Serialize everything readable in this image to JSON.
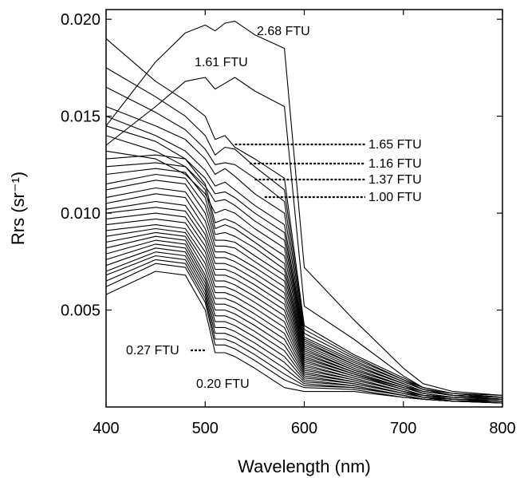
{
  "chart_data": {
    "type": "line",
    "title": "",
    "xlabel": "Wavelength (nm)",
    "ylabel": "Rrs (sr⁻¹)",
    "xlim": [
      400,
      800
    ],
    "ylim": [
      0.0,
      0.0205
    ],
    "x_ticks": [
      {
        "value": 400,
        "label": "400"
      },
      {
        "value": 500,
        "label": "500"
      },
      {
        "value": 600,
        "label": "600"
      },
      {
        "value": 700,
        "label": "700"
      },
      {
        "value": 800,
        "label": "800"
      }
    ],
    "y_ticks": [
      {
        "value": 0.005,
        "label": "0.005"
      },
      {
        "value": 0.01,
        "label": "0.010"
      },
      {
        "value": 0.015,
        "label": "0.015"
      },
      {
        "value": 0.02,
        "label": "0.020"
      }
    ],
    "grid": false,
    "line_color": "#000000",
    "x": [
      400,
      450,
      480,
      500,
      510,
      520,
      530,
      550,
      580,
      600,
      650,
      700,
      720,
      750,
      800
    ],
    "series": [
      {
        "values": [
          0.0145,
          0.0178,
          0.0193,
          0.0197,
          0.0194,
          0.0198,
          0.0199,
          0.0192,
          0.0185,
          0.0072,
          0.0045,
          0.002,
          0.0012,
          0.0008,
          0.0006
        ]
      },
      {
        "values": [
          0.0135,
          0.0155,
          0.0168,
          0.017,
          0.0164,
          0.0167,
          0.017,
          0.0163,
          0.0155,
          0.0052,
          0.0035,
          0.0016,
          0.001,
          0.0007,
          0.0006
        ]
      },
      {
        "values": [
          0.019,
          0.0168,
          0.0158,
          0.015,
          0.0138,
          0.014,
          0.0134,
          0.0128,
          0.0118,
          0.0042,
          0.0027,
          0.0015,
          0.001,
          0.0007,
          0.0005
        ]
      },
      {
        "values": [
          0.0175,
          0.016,
          0.015,
          0.014,
          0.013,
          0.0134,
          0.0133,
          0.0124,
          0.0112,
          0.004,
          0.0026,
          0.0014,
          0.001,
          0.0007,
          0.0005
        ]
      },
      {
        "values": [
          0.0165,
          0.0152,
          0.0143,
          0.0133,
          0.0125,
          0.0126,
          0.0125,
          0.0118,
          0.0106,
          0.0038,
          0.0025,
          0.0014,
          0.0009,
          0.0007,
          0.0005
        ]
      },
      {
        "values": [
          0.0155,
          0.0145,
          0.0138,
          0.0128,
          0.012,
          0.0123,
          0.0119,
          0.011,
          0.01,
          0.0036,
          0.0024,
          0.0013,
          0.0009,
          0.0006,
          0.0005
        ]
      },
      {
        "values": [
          0.015,
          0.014,
          0.0132,
          0.0122,
          0.0114,
          0.0116,
          0.0112,
          0.0104,
          0.0094,
          0.0035,
          0.0023,
          0.0013,
          0.0009,
          0.0006,
          0.0005
        ]
      },
      {
        "values": [
          0.0145,
          0.0137,
          0.0128,
          0.0118,
          0.011,
          0.0111,
          0.0108,
          0.01,
          0.009,
          0.0034,
          0.0022,
          0.0012,
          0.0008,
          0.0006,
          0.0005
        ]
      },
      {
        "values": [
          0.014,
          0.0132,
          0.0124,
          0.0114,
          0.0106,
          0.0107,
          0.0104,
          0.0096,
          0.0086,
          0.0033,
          0.0022,
          0.0012,
          0.0008,
          0.0006,
          0.0005
        ]
      },
      {
        "values": [
          0.0132,
          0.0128,
          0.012,
          0.011,
          0.01,
          0.0102,
          0.01,
          0.0092,
          0.0082,
          0.0032,
          0.0021,
          0.0012,
          0.0008,
          0.0006,
          0.0004
        ]
      },
      {
        "values": [
          0.0128,
          0.013,
          0.0128,
          0.0115,
          0.0095,
          0.0097,
          0.0095,
          0.0088,
          0.0078,
          0.0031,
          0.002,
          0.0011,
          0.0008,
          0.0006,
          0.0004
        ]
      },
      {
        "values": [
          0.0124,
          0.0126,
          0.0124,
          0.0112,
          0.0092,
          0.0094,
          0.0092,
          0.0085,
          0.0074,
          0.003,
          0.0019,
          0.0011,
          0.0007,
          0.0005,
          0.0004
        ]
      },
      {
        "values": [
          0.012,
          0.0123,
          0.0121,
          0.0108,
          0.0089,
          0.009,
          0.0088,
          0.0082,
          0.0071,
          0.0029,
          0.0019,
          0.0011,
          0.0007,
          0.0005,
          0.0004
        ]
      },
      {
        "values": [
          0.0115,
          0.012,
          0.0118,
          0.0104,
          0.0086,
          0.0086,
          0.0085,
          0.0078,
          0.0068,
          0.0028,
          0.0018,
          0.001,
          0.0007,
          0.0005,
          0.0004
        ]
      },
      {
        "values": [
          0.0112,
          0.0117,
          0.0115,
          0.01,
          0.0083,
          0.0083,
          0.0082,
          0.0075,
          0.0065,
          0.0027,
          0.0018,
          0.001,
          0.0007,
          0.0005,
          0.0004
        ]
      },
      {
        "values": [
          0.0108,
          0.0113,
          0.0111,
          0.0096,
          0.008,
          0.008,
          0.0078,
          0.0072,
          0.0062,
          0.0026,
          0.0017,
          0.001,
          0.0007,
          0.0005,
          0.0004
        ]
      },
      {
        "values": [
          0.0105,
          0.011,
          0.0108,
          0.0092,
          0.0077,
          0.0077,
          0.0075,
          0.0069,
          0.0059,
          0.0025,
          0.0017,
          0.0009,
          0.0006,
          0.0005,
          0.0004
        ]
      },
      {
        "values": [
          0.0102,
          0.0106,
          0.0104,
          0.0089,
          0.0074,
          0.0074,
          0.0072,
          0.0066,
          0.0056,
          0.0024,
          0.0016,
          0.0009,
          0.0006,
          0.0005,
          0.0004
        ]
      },
      {
        "values": [
          0.01,
          0.0103,
          0.0101,
          0.0086,
          0.0071,
          0.0071,
          0.0069,
          0.0063,
          0.0053,
          0.0023,
          0.0016,
          0.0009,
          0.0006,
          0.0004,
          0.0004
        ]
      },
      {
        "values": [
          0.0097,
          0.01,
          0.0098,
          0.0083,
          0.0068,
          0.0068,
          0.0066,
          0.006,
          0.005,
          0.0022,
          0.0015,
          0.0008,
          0.0006,
          0.0004,
          0.0003
        ]
      },
      {
        "values": [
          0.0094,
          0.0097,
          0.0095,
          0.008,
          0.0065,
          0.0065,
          0.0063,
          0.0057,
          0.0047,
          0.0021,
          0.0015,
          0.0008,
          0.0006,
          0.0004,
          0.0003
        ]
      },
      {
        "values": [
          0.0091,
          0.0094,
          0.0092,
          0.0077,
          0.0062,
          0.0062,
          0.006,
          0.0054,
          0.0044,
          0.002,
          0.0014,
          0.0008,
          0.0005,
          0.0004,
          0.0003
        ]
      },
      {
        "values": [
          0.0088,
          0.0092,
          0.009,
          0.0074,
          0.0059,
          0.0059,
          0.0057,
          0.0051,
          0.0041,
          0.0019,
          0.0014,
          0.0008,
          0.0005,
          0.0004,
          0.0003
        ]
      },
      {
        "values": [
          0.0085,
          0.009,
          0.0088,
          0.0071,
          0.0056,
          0.0056,
          0.0054,
          0.0048,
          0.0038,
          0.0018,
          0.0013,
          0.0007,
          0.0005,
          0.0004,
          0.0003
        ]
      },
      {
        "values": [
          0.0082,
          0.0088,
          0.0086,
          0.0068,
          0.0053,
          0.0053,
          0.0051,
          0.0045,
          0.0035,
          0.0017,
          0.0013,
          0.0007,
          0.0005,
          0.0004,
          0.0003
        ]
      },
      {
        "values": [
          0.0079,
          0.0086,
          0.0084,
          0.0066,
          0.005,
          0.005,
          0.0048,
          0.0042,
          0.0032,
          0.0016,
          0.0012,
          0.0007,
          0.0005,
          0.0003,
          0.0003
        ]
      },
      {
        "values": [
          0.0076,
          0.0084,
          0.0082,
          0.0064,
          0.0047,
          0.0047,
          0.0045,
          0.0039,
          0.0029,
          0.0015,
          0.0012,
          0.0007,
          0.0005,
          0.0003,
          0.0003
        ]
      },
      {
        "values": [
          0.0073,
          0.0082,
          0.008,
          0.0062,
          0.0044,
          0.0044,
          0.0042,
          0.0036,
          0.0026,
          0.0014,
          0.0011,
          0.0006,
          0.0004,
          0.0003,
          0.0003
        ]
      },
      {
        "values": [
          0.007,
          0.008,
          0.0078,
          0.006,
          0.0041,
          0.0041,
          0.0039,
          0.0033,
          0.0023,
          0.0013,
          0.0011,
          0.0006,
          0.0004,
          0.0003,
          0.0003
        ]
      },
      {
        "values": [
          0.0068,
          0.0078,
          0.0076,
          0.0058,
          0.0038,
          0.0038,
          0.0036,
          0.003,
          0.002,
          0.0012,
          0.001,
          0.0006,
          0.0004,
          0.0003,
          0.0003
        ]
      },
      {
        "values": [
          0.0065,
          0.0076,
          0.0074,
          0.0056,
          0.0035,
          0.0035,
          0.0033,
          0.0027,
          0.0017,
          0.0011,
          0.001,
          0.0006,
          0.0004,
          0.0003,
          0.0002
        ]
      },
      {
        "values": [
          0.0062,
          0.0074,
          0.0072,
          0.0054,
          0.0032,
          0.0032,
          0.003,
          0.0024,
          0.0014,
          0.001,
          0.0009,
          0.0005,
          0.0004,
          0.0003,
          0.0002
        ]
      },
      {
        "values": [
          0.0058,
          0.007,
          0.0068,
          0.005,
          0.0028,
          0.0028,
          0.0026,
          0.002,
          0.001,
          0.0008,
          0.0008,
          0.0005,
          0.0004,
          0.0003,
          0.0002
        ]
      }
    ],
    "annotations": [
      {
        "text": "2.68 FTU",
        "x": 580,
        "y": 0.0196,
        "leader": false
      },
      {
        "text": "1.61 FTU",
        "x": 505,
        "y": 0.0172,
        "leader": false
      },
      {
        "text": "1.65 FTU",
        "x": 530,
        "y": 0.0133,
        "leader": true
      },
      {
        "text": "1.16 FTU",
        "x": 545,
        "y": 0.0125,
        "leader": true
      },
      {
        "text": "1.37 FTU",
        "x": 550,
        "y": 0.0118,
        "leader": true
      },
      {
        "text": "1.00 FTU",
        "x": 560,
        "y": 0.0111,
        "leader": true
      },
      {
        "text": "0.27 FTU",
        "x": 485,
        "y": 0.0029,
        "leader": true
      },
      {
        "text": "0.20 FTU",
        "x": 495,
        "y": 0.0012,
        "leader": false
      }
    ]
  }
}
